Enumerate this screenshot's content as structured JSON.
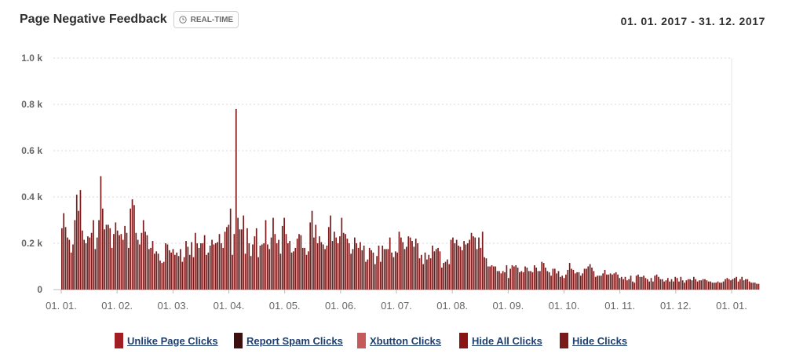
{
  "header": {
    "title": "Page Negative Feedback",
    "badge_label": "REAL-TIME",
    "date_range": "01. 01. 2017 - 31. 12. 2017"
  },
  "colors": {
    "bar": "#7a1a1a",
    "grid": "#d9d9d9"
  },
  "legend": [
    {
      "label": "Unlike Page Clicks",
      "color": "#a11f24"
    },
    {
      "label": "Report Spam Clicks",
      "color": "#3b1010"
    },
    {
      "label": "Xbutton Clicks",
      "color": "#c65a5a"
    },
    {
      "label": "Hide All Clicks",
      "color": "#8a1414"
    },
    {
      "label": "Hide Clicks",
      "color": "#7a1a1a"
    }
  ],
  "chart_data": {
    "type": "bar",
    "title": "Page Negative Feedback",
    "xlabel": "",
    "ylabel": "",
    "ylim": [
      0,
      1000
    ],
    "y_ticks": [
      "0",
      "0.2 k",
      "0.4 k",
      "0.6 k",
      "0.8 k",
      "1.0 k"
    ],
    "x_ticks": [
      "01. 01.",
      "01. 02.",
      "01. 03.",
      "01. 04.",
      "01. 05.",
      "01. 06.",
      "01. 07.",
      "01. 08.",
      "01. 09.",
      "01. 10.",
      "01. 11.",
      "01. 12.",
      "01. 01."
    ],
    "grid": true,
    "legend_position": "bottom",
    "series": [
      {
        "name": "Unlike Page Clicks",
        "values": []
      },
      {
        "name": "Report Spam Clicks",
        "values": []
      },
      {
        "name": "Xbutton Clicks",
        "values": []
      },
      {
        "name": "Hide All Clicks",
        "values": []
      },
      {
        "name": "Hide Clicks",
        "values": []
      }
    ],
    "x_start": "2017-01-01",
    "daily_totals": [
      265,
      330,
      270,
      225,
      215,
      160,
      195,
      300,
      410,
      340,
      430,
      255,
      215,
      200,
      230,
      225,
      245,
      300,
      175,
      225,
      300,
      490,
      350,
      260,
      280,
      280,
      265,
      180,
      240,
      290,
      255,
      235,
      240,
      215,
      275,
      245,
      180,
      350,
      390,
      365,
      245,
      215,
      195,
      245,
      300,
      250,
      235,
      175,
      180,
      210,
      155,
      165,
      155,
      125,
      115,
      120,
      200,
      195,
      170,
      160,
      175,
      150,
      160,
      145,
      175,
      120,
      140,
      210,
      185,
      150,
      205,
      140,
      245,
      200,
      180,
      200,
      200,
      235,
      150,
      160,
      190,
      215,
      195,
      200,
      205,
      240,
      200,
      180,
      250,
      270,
      280,
      350,
      150,
      240,
      780,
      310,
      260,
      260,
      320,
      155,
      265,
      200,
      145,
      195,
      230,
      265,
      140,
      190,
      195,
      200,
      300,
      195,
      175,
      225,
      310,
      240,
      200,
      215,
      155,
      275,
      310,
      240,
      200,
      210,
      160,
      165,
      180,
      220,
      240,
      235,
      180,
      180,
      150,
      165,
      290,
      340,
      225,
      280,
      200,
      230,
      205,
      195,
      175,
      190,
      270,
      320,
      210,
      250,
      225,
      200,
      230,
      310,
      245,
      240,
      220,
      200,
      155,
      175,
      225,
      200,
      180,
      205,
      170,
      190,
      120,
      130,
      180,
      170,
      160,
      110,
      145,
      190,
      120,
      190,
      175,
      175,
      175,
      225,
      160,
      140,
      165,
      160,
      250,
      225,
      205,
      175,
      185,
      230,
      225,
      210,
      185,
      220,
      200,
      135,
      150,
      110,
      160,
      130,
      150,
      135,
      190,
      165,
      175,
      180,
      165,
      95,
      115,
      120,
      130,
      110,
      215,
      225,
      200,
      215,
      190,
      185,
      170,
      210,
      195,
      200,
      215,
      245,
      230,
      225,
      175,
      225,
      180,
      250,
      140,
      135,
      100,
      100,
      105,
      100,
      100,
      80,
      80,
      70,
      80,
      75,
      105,
      50,
      90,
      105,
      100,
      105,
      95,
      75,
      80,
      75,
      100,
      95,
      80,
      80,
      75,
      105,
      95,
      80,
      80,
      120,
      115,
      95,
      80,
      75,
      60,
      90,
      90,
      70,
      80,
      55,
      60,
      50,
      65,
      85,
      115,
      90,
      85,
      70,
      75,
      75,
      60,
      70,
      90,
      90,
      100,
      110,
      95,
      80,
      55,
      60,
      60,
      60,
      70,
      85,
      65,
      65,
      70,
      65,
      70,
      75,
      65,
      50,
      55,
      45,
      55,
      40,
      45,
      60,
      35,
      30,
      60,
      65,
      55,
      55,
      60,
      50,
      45,
      35,
      50,
      35,
      60,
      65,
      55,
      45,
      45,
      35,
      40,
      50,
      35,
      45,
      35,
      55,
      50,
      35,
      55,
      40,
      30,
      40,
      45,
      45,
      40,
      55,
      45,
      35,
      40,
      40,
      45,
      45,
      40,
      35,
      35,
      30,
      30,
      30,
      35,
      30,
      30,
      35,
      45,
      50,
      45,
      40,
      45,
      50,
      55,
      35,
      45,
      55,
      40,
      45,
      45,
      35,
      30,
      30,
      30,
      25,
      25
    ]
  }
}
